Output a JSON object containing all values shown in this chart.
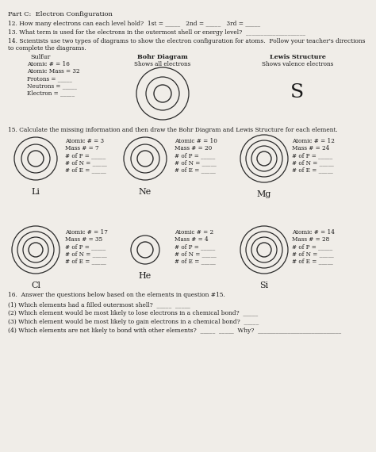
{
  "bg_color": "#f0ede8",
  "title": "Part C:  Electron Configuration",
  "q12": "12. How many electrons can each level hold?  1st = _____   2nd = _____   3rd = _____",
  "q13": "13. What term is used for the electrons in the outermost shell or energy level?  ____________________",
  "q14_line1": "14. Scientists use two types of diagrams to show the electron configuration for atoms.  Follow your teacher's directions",
  "q14_line2": "to complete the diagrams.",
  "sulfur_label": "Sulfur",
  "sulfur_info": [
    "Atomic # = 16",
    "Atomic Mass = 32",
    "Protons = _____",
    "Neutrons = _____",
    "Electron = _____"
  ],
  "bohr_title": "Bohr Diagram",
  "bohr_sub": "Shows all electrons",
  "lewis_title": "Lewis Structure",
  "lewis_sub": "Shows valence electrons",
  "lewis_symbol": "S",
  "q15": "15. Calculate the missing information and then draw the Bohr Diagram and Lewis Structure for each element.",
  "info_lines": [
    "# of P = _____",
    "# of N = _____",
    "# of E = _____"
  ],
  "row1": [
    {
      "symbol": "Li",
      "atomic": "Atomic # = 3",
      "mass": "Mass # = 7",
      "rings": [
        10,
        18,
        27
      ]
    },
    {
      "symbol": "Ne",
      "atomic": "Atomic # = 10",
      "mass": "Mass # = 20",
      "rings": [
        10,
        18,
        27
      ]
    },
    {
      "symbol": "Mg",
      "atomic": "Atomic # = 12",
      "mass": "Mass # = 24",
      "rings": [
        9,
        16,
        23,
        30
      ]
    }
  ],
  "row2": [
    {
      "symbol": "Cl",
      "atomic": "Atomic # = 17",
      "mass": "Mass # = 35",
      "rings": [
        9,
        16,
        23,
        30
      ]
    },
    {
      "symbol": "He",
      "atomic": "Atomic # = 2",
      "mass": "Mass # = 4",
      "rings": [
        10,
        18
      ]
    },
    {
      "symbol": "Si",
      "atomic": "Atomic # = 14",
      "mass": "Mass # = 28",
      "rings": [
        9,
        16,
        23,
        30
      ]
    }
  ],
  "q16": "16.  Answer the questions below based on the elements in question #15.",
  "q16_1": "(1) Which elements had a filled outermost shell?  _____  _____",
  "q16_2": "(2) Which element would be most likely to lose electrons in a chemical bond?  _____",
  "q16_3": "(3) Which element would be most likely to gain electrons in a chemical bond?  _____",
  "q16_4": "(4) Which elements are not likely to bond with other elements?  _____  _____  Why?  ____________________________"
}
